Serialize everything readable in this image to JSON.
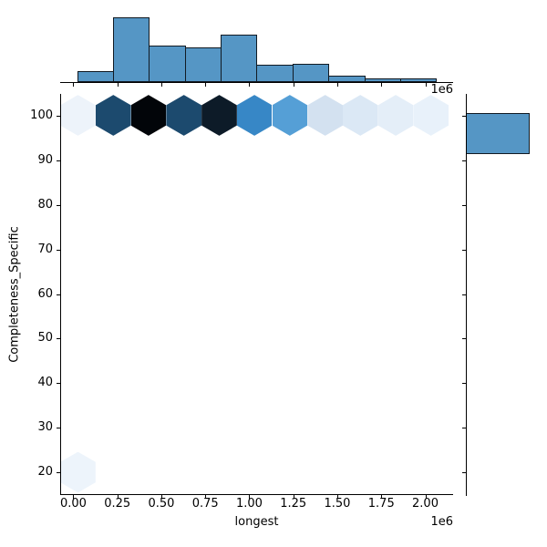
{
  "figure": {
    "xlabel": "longest",
    "ylabel": "Completeness_Specific",
    "x_offset_label": "1e6"
  },
  "style": {
    "bar_fill": "#5596c5",
    "bar_edge": "#111a23",
    "spine_color": "#000000",
    "tick_color": "#000000",
    "background": "#ffffff"
  },
  "chart_data": [
    {
      "type": "heatmap",
      "subtype": "hexbin",
      "title": "",
      "xlabel": "longest",
      "ylabel": "Completeness_Specific",
      "xlim": [
        -75000,
        2158000
      ],
      "ylim": [
        15.2,
        104.8
      ],
      "grid": false,
      "legend": "none",
      "x_offset_text": "1e6",
      "x_tick_values": [
        0,
        250000,
        500000,
        750000,
        1000000,
        1250000,
        1500000,
        1750000,
        2000000
      ],
      "x_tick_labels": [
        "0.00",
        "0.25",
        "0.50",
        "0.75",
        "1.00",
        "1.25",
        "1.50",
        "1.75",
        "2.00"
      ],
      "y_tick_values": [
        20,
        30,
        40,
        50,
        60,
        70,
        80,
        90,
        100
      ],
      "y_tick_labels": [
        "20",
        "30",
        "40",
        "50",
        "60",
        "70",
        "80",
        "90",
        "100"
      ],
      "hex_width_x": 200700,
      "points": [
        {
          "x": 26000,
          "y": 100,
          "density": 0.04,
          "color": "#edf3fa"
        },
        {
          "x": 227000,
          "y": 100,
          "density": 0.75,
          "color": "#1c4a6e"
        },
        {
          "x": 427000,
          "y": 100,
          "density": 1.0,
          "color": "#020509"
        },
        {
          "x": 628000,
          "y": 100,
          "density": 0.75,
          "color": "#1c4a6e"
        },
        {
          "x": 829000,
          "y": 100,
          "density": 0.93,
          "color": "#0d1b28"
        },
        {
          "x": 1029000,
          "y": 100,
          "density": 0.55,
          "color": "#3787c6"
        },
        {
          "x": 1230000,
          "y": 100,
          "density": 0.45,
          "color": "#559fd6"
        },
        {
          "x": 1431000,
          "y": 100,
          "density": 0.17,
          "color": "#d3e1f0"
        },
        {
          "x": 1631000,
          "y": 100,
          "density": 0.14,
          "color": "#dbe8f5"
        },
        {
          "x": 1832000,
          "y": 100,
          "density": 0.08,
          "color": "#e4eef8"
        },
        {
          "x": 2032000,
          "y": 100,
          "density": 0.07,
          "color": "#e8f1fa"
        },
        {
          "x": 26000,
          "y": 20.1,
          "density": 0.03,
          "color": "#edf4fb"
        }
      ]
    },
    {
      "type": "bar",
      "role": "top-marginal-histogram",
      "orientation": "vertical",
      "x_offset_text": "1e6",
      "bins": [
        {
          "x0": 21000,
          "x1": 225000,
          "height_frac": 0.15
        },
        {
          "x0": 225000,
          "x1": 429000,
          "height_frac": 0.89
        },
        {
          "x0": 429000,
          "x1": 633000,
          "height_frac": 0.495
        },
        {
          "x0": 633000,
          "x1": 837000,
          "height_frac": 0.47
        },
        {
          "x0": 837000,
          "x1": 1041000,
          "height_frac": 0.655
        },
        {
          "x0": 1041000,
          "x1": 1245000,
          "height_frac": 0.233
        },
        {
          "x0": 1245000,
          "x1": 1449000,
          "height_frac": 0.254
        },
        {
          "x0": 1449000,
          "x1": 1653000,
          "height_frac": 0.091
        },
        {
          "x0": 1653000,
          "x1": 1857000,
          "height_frac": 0.048
        },
        {
          "x0": 1857000,
          "x1": 2061000,
          "height_frac": 0.05
        }
      ]
    },
    {
      "type": "bar",
      "role": "right-marginal-histogram",
      "orientation": "horizontal",
      "bins": [
        {
          "y0": 91.4,
          "y1": 100.6,
          "length_frac": 0.9
        }
      ]
    }
  ]
}
